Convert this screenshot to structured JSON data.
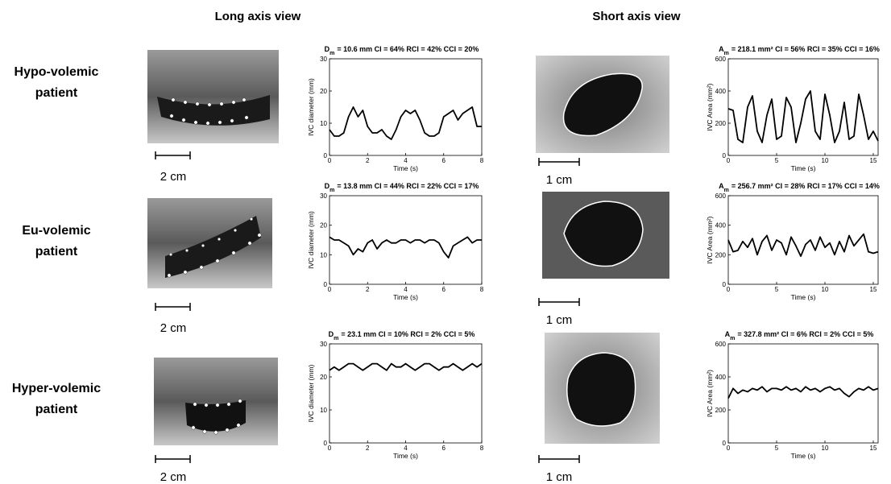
{
  "headers": {
    "long": "Long axis view",
    "short": "Short axis view"
  },
  "rows": [
    {
      "label_lines": [
        "Hypo-volemic",
        "patient"
      ],
      "long_scale": "2 cm",
      "short_scale": "1 cm"
    },
    {
      "label_lines": [
        "Eu-volemic",
        "patient"
      ],
      "long_scale": "2 cm",
      "short_scale": "1 cm"
    },
    {
      "label_lines": [
        "Hyper-volemic",
        "patient"
      ],
      "long_scale": "2 cm",
      "short_scale": "1 cm"
    }
  ],
  "chart_data": [
    {
      "type": "line",
      "title": {
        "main": "D",
        "sub": "m",
        "rest": "= 10.6 mm CI = 64% RCI = 42% CCI = 20%"
      },
      "xlabel": "Time (s)",
      "ylabel": "IVC diameter (mm)",
      "xlim": [
        0,
        8
      ],
      "ylim": [
        0,
        30
      ],
      "xticks": [
        0,
        2,
        4,
        6,
        8
      ],
      "yticks": [
        0,
        10,
        20,
        30
      ],
      "x": [
        0,
        0.25,
        0.5,
        0.75,
        1,
        1.25,
        1.5,
        1.75,
        2,
        2.25,
        2.5,
        2.75,
        3,
        3.25,
        3.5,
        3.75,
        4,
        4.25,
        4.5,
        4.75,
        5,
        5.25,
        5.5,
        5.75,
        6,
        6.25,
        6.5,
        6.75,
        7,
        7.25,
        7.5,
        7.75,
        8
      ],
      "series": [
        {
          "color": "#000000",
          "values": [
            8,
            6,
            6,
            7,
            12,
            15,
            12,
            14,
            9,
            7,
            7,
            8,
            6,
            5,
            8,
            12,
            14,
            13,
            14,
            11,
            7,
            6,
            6,
            7,
            12,
            13,
            14,
            11,
            13,
            14,
            15,
            9,
            9
          ]
        }
      ]
    },
    {
      "type": "line",
      "title": {
        "main": "A",
        "sub": "m",
        "rest": "= 218.1 mm² CI = 56% RCI = 35% CCI = 16%"
      },
      "xlabel": "Time (s)",
      "ylabel": "IVC Area (mm²)",
      "xlim": [
        0,
        15.5
      ],
      "ylim": [
        0,
        600
      ],
      "xticks": [
        0,
        5,
        10,
        15
      ],
      "yticks": [
        0,
        200,
        400,
        600
      ],
      "x": [
        0,
        0.5,
        1,
        1.5,
        2,
        2.5,
        3,
        3.5,
        4,
        4.5,
        5,
        5.5,
        6,
        6.5,
        7,
        7.5,
        8,
        8.5,
        9,
        9.5,
        10,
        10.5,
        11,
        11.5,
        12,
        12.5,
        13,
        13.5,
        14,
        14.5,
        15,
        15.5
      ],
      "series": [
        {
          "color": "#000000",
          "values": [
            290,
            280,
            100,
            80,
            300,
            370,
            150,
            80,
            250,
            350,
            100,
            120,
            360,
            300,
            80,
            200,
            350,
            400,
            150,
            100,
            380,
            250,
            80,
            150,
            330,
            100,
            120,
            380,
            250,
            100,
            150,
            90
          ]
        }
      ]
    },
    {
      "type": "line",
      "title": {
        "main": "D",
        "sub": "m",
        "rest": "= 13.8 mm CI = 44% RCI = 22% CCI = 17%"
      },
      "xlabel": "Time (s)",
      "ylabel": "IVC diameter (mm)",
      "xlim": [
        0,
        8
      ],
      "ylim": [
        0,
        30
      ],
      "xticks": [
        0,
        2,
        4,
        6,
        8
      ],
      "yticks": [
        0,
        10,
        20,
        30
      ],
      "x": [
        0,
        0.25,
        0.5,
        0.75,
        1,
        1.25,
        1.5,
        1.75,
        2,
        2.25,
        2.5,
        2.75,
        3,
        3.25,
        3.5,
        3.75,
        4,
        4.25,
        4.5,
        4.75,
        5,
        5.25,
        5.5,
        5.75,
        6,
        6.25,
        6.5,
        6.75,
        7,
        7.25,
        7.5,
        7.75,
        8
      ],
      "series": [
        {
          "color": "#000000",
          "values": [
            16,
            15,
            15,
            14,
            13,
            10,
            12,
            11,
            14,
            15,
            12,
            14,
            15,
            14,
            14,
            15,
            15,
            14,
            15,
            15,
            14,
            15,
            15,
            14,
            11,
            9,
            13,
            14,
            15,
            16,
            14,
            15,
            15
          ]
        }
      ]
    },
    {
      "type": "line",
      "title": {
        "main": "A",
        "sub": "m",
        "rest": "= 256.7 mm² CI = 28% RCI = 17% CCI = 14%"
      },
      "xlabel": "Time (s)",
      "ylabel": "IVC Area (mm²)",
      "xlim": [
        0,
        15.5
      ],
      "ylim": [
        0,
        600
      ],
      "xticks": [
        0,
        5,
        10,
        15
      ],
      "yticks": [
        0,
        200,
        400,
        600
      ],
      "x": [
        0,
        0.5,
        1,
        1.5,
        2,
        2.5,
        3,
        3.5,
        4,
        4.5,
        5,
        5.5,
        6,
        6.5,
        7,
        7.5,
        8,
        8.5,
        9,
        9.5,
        10,
        10.5,
        11,
        11.5,
        12,
        12.5,
        13,
        13.5,
        14,
        14.5,
        15,
        15.5
      ],
      "series": [
        {
          "color": "#000000",
          "values": [
            300,
            220,
            230,
            290,
            250,
            310,
            200,
            290,
            330,
            230,
            300,
            280,
            200,
            320,
            260,
            190,
            270,
            300,
            230,
            320,
            250,
            280,
            200,
            290,
            220,
            330,
            260,
            300,
            340,
            220,
            210,
            220
          ]
        }
      ]
    },
    {
      "type": "line",
      "title": {
        "main": "D",
        "sub": "m",
        "rest": "= 23.1 mm CI = 10% RCI = 2% CCI = 5%"
      },
      "xlabel": "Time (s)",
      "ylabel": "IVC diameter (mm)",
      "xlim": [
        0,
        8
      ],
      "ylim": [
        0,
        30
      ],
      "xticks": [
        0,
        2,
        4,
        6,
        8
      ],
      "yticks": [
        0,
        10,
        20,
        30
      ],
      "x": [
        0,
        0.25,
        0.5,
        0.75,
        1,
        1.25,
        1.5,
        1.75,
        2,
        2.25,
        2.5,
        2.75,
        3,
        3.25,
        3.5,
        3.75,
        4,
        4.25,
        4.5,
        4.75,
        5,
        5.25,
        5.5,
        5.75,
        6,
        6.25,
        6.5,
        6.75,
        7,
        7.25,
        7.5,
        7.75,
        8
      ],
      "series": [
        {
          "color": "#000000",
          "values": [
            22,
            23,
            22,
            23,
            24,
            24,
            23,
            22,
            23,
            24,
            24,
            23,
            22,
            24,
            23,
            23,
            24,
            23,
            22,
            23,
            24,
            24,
            23,
            22,
            23,
            23,
            24,
            23,
            22,
            23,
            24,
            23,
            24
          ]
        }
      ]
    },
    {
      "type": "line",
      "title": {
        "main": "A",
        "sub": "m",
        "rest": "= 327.8 mm² CI = 6% RCI = 2% CCI = 5%"
      },
      "xlabel": "Time (s)",
      "ylabel": "IVC Area (mm²)",
      "xlim": [
        0,
        15.5
      ],
      "ylim": [
        0,
        600
      ],
      "xticks": [
        0,
        5,
        10,
        15
      ],
      "yticks": [
        0,
        200,
        400,
        600
      ],
      "x": [
        0,
        0.5,
        1,
        1.5,
        2,
        2.5,
        3,
        3.5,
        4,
        4.5,
        5,
        5.5,
        6,
        6.5,
        7,
        7.5,
        8,
        8.5,
        9,
        9.5,
        10,
        10.5,
        11,
        11.5,
        12,
        12.5,
        13,
        13.5,
        14,
        14.5,
        15,
        15.5
      ],
      "series": [
        {
          "color": "#000000",
          "values": [
            270,
            330,
            300,
            320,
            310,
            330,
            320,
            340,
            310,
            330,
            330,
            320,
            340,
            320,
            330,
            310,
            340,
            320,
            330,
            310,
            330,
            340,
            320,
            330,
            300,
            280,
            310,
            330,
            320,
            340,
            320,
            330
          ]
        }
      ]
    }
  ]
}
